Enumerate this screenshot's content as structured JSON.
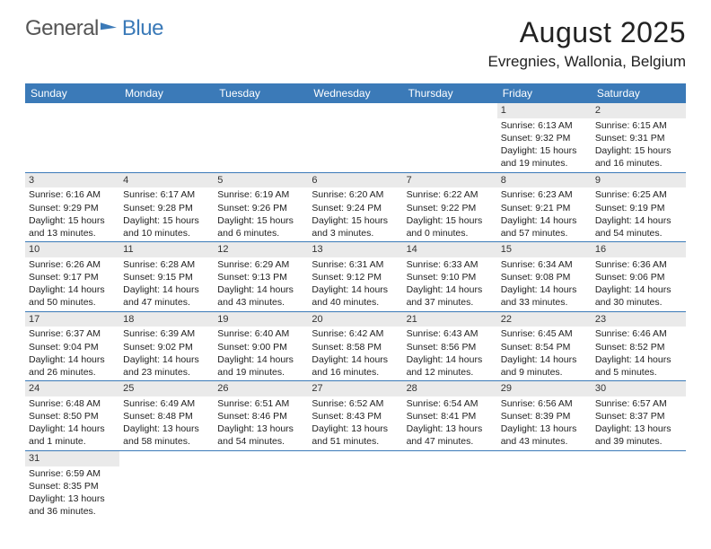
{
  "brand": {
    "general": "General",
    "blue": "Blue"
  },
  "title": "August 2025",
  "location": "Evregnies, Wallonia, Belgium",
  "colors": {
    "accent": "#3b7ab8",
    "header_bg": "#3b7ab8",
    "daynum_bg": "#eaeaea"
  },
  "weekdays": [
    "Sunday",
    "Monday",
    "Tuesday",
    "Wednesday",
    "Thursday",
    "Friday",
    "Saturday"
  ],
  "weeks": [
    [
      null,
      null,
      null,
      null,
      null,
      {
        "d": "1",
        "sr": "Sunrise: 6:13 AM",
        "ss": "Sunset: 9:32 PM",
        "dl": "Daylight: 15 hours and 19 minutes."
      },
      {
        "d": "2",
        "sr": "Sunrise: 6:15 AM",
        "ss": "Sunset: 9:31 PM",
        "dl": "Daylight: 15 hours and 16 minutes."
      }
    ],
    [
      {
        "d": "3",
        "sr": "Sunrise: 6:16 AM",
        "ss": "Sunset: 9:29 PM",
        "dl": "Daylight: 15 hours and 13 minutes."
      },
      {
        "d": "4",
        "sr": "Sunrise: 6:17 AM",
        "ss": "Sunset: 9:28 PM",
        "dl": "Daylight: 15 hours and 10 minutes."
      },
      {
        "d": "5",
        "sr": "Sunrise: 6:19 AM",
        "ss": "Sunset: 9:26 PM",
        "dl": "Daylight: 15 hours and 6 minutes."
      },
      {
        "d": "6",
        "sr": "Sunrise: 6:20 AM",
        "ss": "Sunset: 9:24 PM",
        "dl": "Daylight: 15 hours and 3 minutes."
      },
      {
        "d": "7",
        "sr": "Sunrise: 6:22 AM",
        "ss": "Sunset: 9:22 PM",
        "dl": "Daylight: 15 hours and 0 minutes."
      },
      {
        "d": "8",
        "sr": "Sunrise: 6:23 AM",
        "ss": "Sunset: 9:21 PM",
        "dl": "Daylight: 14 hours and 57 minutes."
      },
      {
        "d": "9",
        "sr": "Sunrise: 6:25 AM",
        "ss": "Sunset: 9:19 PM",
        "dl": "Daylight: 14 hours and 54 minutes."
      }
    ],
    [
      {
        "d": "10",
        "sr": "Sunrise: 6:26 AM",
        "ss": "Sunset: 9:17 PM",
        "dl": "Daylight: 14 hours and 50 minutes."
      },
      {
        "d": "11",
        "sr": "Sunrise: 6:28 AM",
        "ss": "Sunset: 9:15 PM",
        "dl": "Daylight: 14 hours and 47 minutes."
      },
      {
        "d": "12",
        "sr": "Sunrise: 6:29 AM",
        "ss": "Sunset: 9:13 PM",
        "dl": "Daylight: 14 hours and 43 minutes."
      },
      {
        "d": "13",
        "sr": "Sunrise: 6:31 AM",
        "ss": "Sunset: 9:12 PM",
        "dl": "Daylight: 14 hours and 40 minutes."
      },
      {
        "d": "14",
        "sr": "Sunrise: 6:33 AM",
        "ss": "Sunset: 9:10 PM",
        "dl": "Daylight: 14 hours and 37 minutes."
      },
      {
        "d": "15",
        "sr": "Sunrise: 6:34 AM",
        "ss": "Sunset: 9:08 PM",
        "dl": "Daylight: 14 hours and 33 minutes."
      },
      {
        "d": "16",
        "sr": "Sunrise: 6:36 AM",
        "ss": "Sunset: 9:06 PM",
        "dl": "Daylight: 14 hours and 30 minutes."
      }
    ],
    [
      {
        "d": "17",
        "sr": "Sunrise: 6:37 AM",
        "ss": "Sunset: 9:04 PM",
        "dl": "Daylight: 14 hours and 26 minutes."
      },
      {
        "d": "18",
        "sr": "Sunrise: 6:39 AM",
        "ss": "Sunset: 9:02 PM",
        "dl": "Daylight: 14 hours and 23 minutes."
      },
      {
        "d": "19",
        "sr": "Sunrise: 6:40 AM",
        "ss": "Sunset: 9:00 PM",
        "dl": "Daylight: 14 hours and 19 minutes."
      },
      {
        "d": "20",
        "sr": "Sunrise: 6:42 AM",
        "ss": "Sunset: 8:58 PM",
        "dl": "Daylight: 14 hours and 16 minutes."
      },
      {
        "d": "21",
        "sr": "Sunrise: 6:43 AM",
        "ss": "Sunset: 8:56 PM",
        "dl": "Daylight: 14 hours and 12 minutes."
      },
      {
        "d": "22",
        "sr": "Sunrise: 6:45 AM",
        "ss": "Sunset: 8:54 PM",
        "dl": "Daylight: 14 hours and 9 minutes."
      },
      {
        "d": "23",
        "sr": "Sunrise: 6:46 AM",
        "ss": "Sunset: 8:52 PM",
        "dl": "Daylight: 14 hours and 5 minutes."
      }
    ],
    [
      {
        "d": "24",
        "sr": "Sunrise: 6:48 AM",
        "ss": "Sunset: 8:50 PM",
        "dl": "Daylight: 14 hours and 1 minute."
      },
      {
        "d": "25",
        "sr": "Sunrise: 6:49 AM",
        "ss": "Sunset: 8:48 PM",
        "dl": "Daylight: 13 hours and 58 minutes."
      },
      {
        "d": "26",
        "sr": "Sunrise: 6:51 AM",
        "ss": "Sunset: 8:46 PM",
        "dl": "Daylight: 13 hours and 54 minutes."
      },
      {
        "d": "27",
        "sr": "Sunrise: 6:52 AM",
        "ss": "Sunset: 8:43 PM",
        "dl": "Daylight: 13 hours and 51 minutes."
      },
      {
        "d": "28",
        "sr": "Sunrise: 6:54 AM",
        "ss": "Sunset: 8:41 PM",
        "dl": "Daylight: 13 hours and 47 minutes."
      },
      {
        "d": "29",
        "sr": "Sunrise: 6:56 AM",
        "ss": "Sunset: 8:39 PM",
        "dl": "Daylight: 13 hours and 43 minutes."
      },
      {
        "d": "30",
        "sr": "Sunrise: 6:57 AM",
        "ss": "Sunset: 8:37 PM",
        "dl": "Daylight: 13 hours and 39 minutes."
      }
    ],
    [
      {
        "d": "31",
        "sr": "Sunrise: 6:59 AM",
        "ss": "Sunset: 8:35 PM",
        "dl": "Daylight: 13 hours and 36 minutes."
      },
      null,
      null,
      null,
      null,
      null,
      null
    ]
  ]
}
